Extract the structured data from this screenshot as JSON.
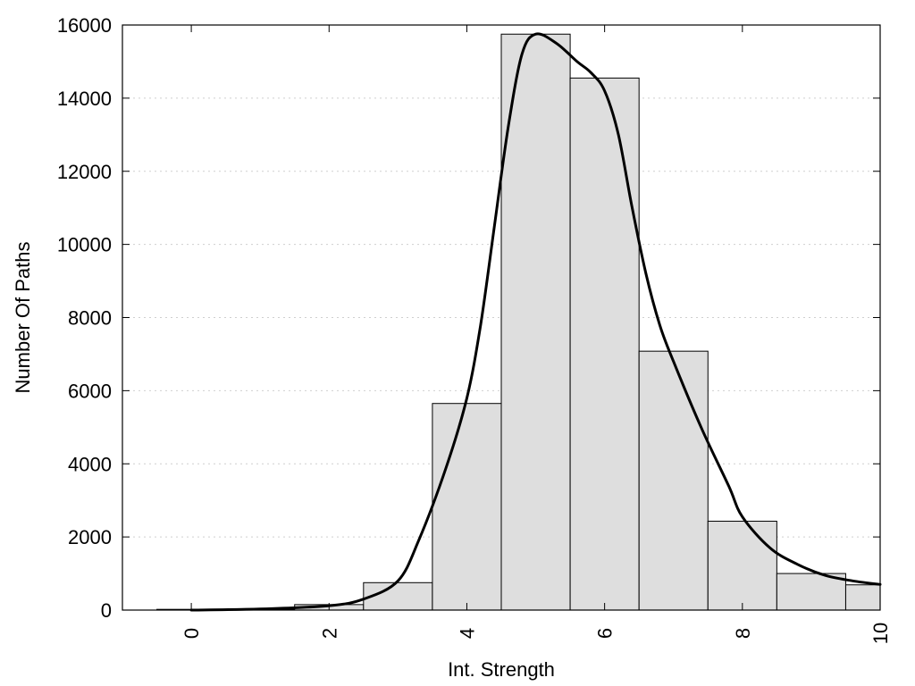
{
  "chart_data": {
    "type": "bar",
    "title": "",
    "xlabel": "Int. Strength",
    "ylabel": "Number Of Paths",
    "xlim": [
      -1,
      10
    ],
    "ylim": [
      0,
      16000
    ],
    "x_ticks": [
      0,
      2,
      4,
      6,
      8,
      10
    ],
    "y_ticks": [
      0,
      2000,
      4000,
      6000,
      8000,
      10000,
      12000,
      14000,
      16000
    ],
    "grid": "horizontal dotted",
    "bar_color": "#dedede",
    "curve_color": "#000000",
    "bars": [
      {
        "x": 0,
        "value": 20
      },
      {
        "x": 1,
        "value": 20
      },
      {
        "x": 2,
        "value": 150
      },
      {
        "x": 3,
        "value": 750
      },
      {
        "x": 4,
        "value": 5650
      },
      {
        "x": 5,
        "value": 15750
      },
      {
        "x": 6,
        "value": 14550
      },
      {
        "x": 7,
        "value": 7080
      },
      {
        "x": 8,
        "value": 2430
      },
      {
        "x": 9,
        "value": 1000
      },
      {
        "x": 10,
        "value": 690
      }
    ],
    "curve": [
      [
        0,
        0
      ],
      [
        1,
        30
      ],
      [
        2,
        120
      ],
      [
        2.5,
        300
      ],
      [
        3,
        800
      ],
      [
        3.3,
        1900
      ],
      [
        3.7,
        3900
      ],
      [
        4,
        5800
      ],
      [
        4.2,
        7800
      ],
      [
        4.4,
        10500
      ],
      [
        4.6,
        13200
      ],
      [
        4.8,
        15200
      ],
      [
        5,
        15750
      ],
      [
        5.3,
        15500
      ],
      [
        5.6,
        15000
      ],
      [
        5.8,
        14700
      ],
      [
        6,
        14200
      ],
      [
        6.2,
        13000
      ],
      [
        6.4,
        11000
      ],
      [
        6.6,
        9200
      ],
      [
        6.8,
        7800
      ],
      [
        7,
        6800
      ],
      [
        7.4,
        5000
      ],
      [
        7.8,
        3400
      ],
      [
        8,
        2550
      ],
      [
        8.4,
        1700
      ],
      [
        8.8,
        1250
      ],
      [
        9.2,
        950
      ],
      [
        9.6,
        800
      ],
      [
        10,
        700
      ]
    ]
  }
}
